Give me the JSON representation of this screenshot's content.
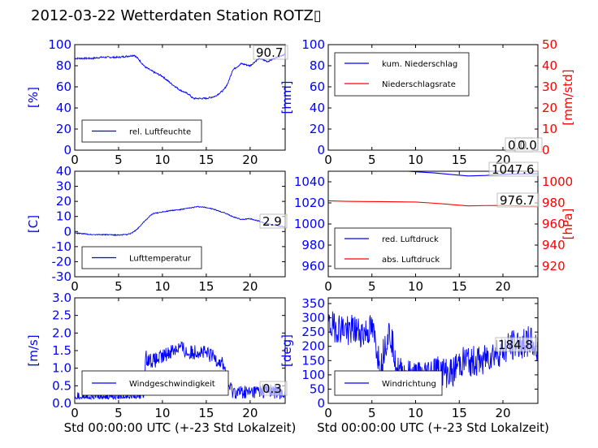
{
  "figure": {
    "title": "2012-03-22 Wetterdaten Station ROTZ▯"
  },
  "chart_data": [
    {
      "id": "humidity",
      "type": "line",
      "ylabel_left": "[%]",
      "ylim": [
        0,
        100
      ],
      "yticks": [
        0,
        20,
        40,
        60,
        80,
        100
      ],
      "xlim": [
        0,
        24
      ],
      "xticks": [
        0,
        5,
        10,
        15,
        20
      ],
      "legend": {
        "placement": "lower-left"
      },
      "annotation": "90.7",
      "series": [
        {
          "name": "rel. Luftfeuchte",
          "color": "#0000ff",
          "noise": 0.8,
          "x": [
            0,
            1,
            2,
            3,
            4,
            5,
            6,
            6.8,
            7.3,
            8,
            9,
            10,
            11,
            12,
            13,
            13.5,
            14,
            15,
            16,
            16.5,
            17,
            17.5,
            18,
            19,
            20,
            21,
            22,
            23,
            24
          ],
          "y": [
            87,
            87,
            87,
            88,
            88,
            88,
            89,
            90,
            86,
            79,
            74,
            70,
            63,
            57,
            53,
            49,
            49,
            49,
            51,
            54,
            57,
            64,
            76,
            82,
            80,
            87,
            84,
            88,
            91
          ]
        }
      ]
    },
    {
      "id": "precipitation",
      "type": "line",
      "ylabel_left": "[mm]",
      "ylabel_right": "[mm/std]",
      "ylim": [
        0,
        100
      ],
      "yticks": [
        0,
        20,
        40,
        60,
        80,
        100
      ],
      "ylim_right": [
        0,
        50
      ],
      "yticks_right": [
        0,
        10,
        20,
        30,
        40,
        50
      ],
      "xlim": [
        0,
        24
      ],
      "xticks": [
        0,
        5,
        10,
        15,
        20
      ],
      "legend": {
        "placement": "top-left"
      },
      "annotation": "0.0",
      "annotation2": "0.0",
      "series": [
        {
          "name": "kum. Niederschlag",
          "color": "#0000ff",
          "x": [
            0,
            24
          ],
          "y": [
            0,
            0
          ]
        },
        {
          "name": "Niederschlagsrate",
          "color": "#ff0000",
          "axis": "right",
          "x": [
            0,
            24
          ],
          "y": [
            0,
            0
          ]
        }
      ]
    },
    {
      "id": "temperature",
      "type": "line",
      "ylabel_left": "[C]",
      "ylim": [
        -30,
        40
      ],
      "yticks": [
        -30,
        -20,
        -10,
        0,
        10,
        20,
        30,
        40
      ],
      "xlim": [
        0,
        24
      ],
      "xticks": [
        0,
        5,
        10,
        15,
        20
      ],
      "legend": {
        "placement": "lower-left"
      },
      "annotation": "2.9",
      "series": [
        {
          "name": "Lufttemperatur",
          "color": "#0000ff",
          "noise": 0.35,
          "x": [
            0,
            1,
            2,
            3,
            4,
            5,
            6,
            6.5,
            7,
            7.5,
            8,
            8.5,
            9,
            10,
            11,
            12,
            13,
            14,
            15,
            16,
            17,
            18,
            19,
            20,
            21,
            22,
            23,
            24
          ],
          "y": [
            -1,
            -1.5,
            -2,
            -2,
            -2.2,
            -2.3,
            -2,
            -1,
            1,
            4,
            7,
            10,
            12,
            13,
            14,
            14.5,
            15.5,
            16.5,
            16,
            14.5,
            12.5,
            10,
            8,
            8.5,
            7,
            5,
            4,
            3
          ]
        }
      ]
    },
    {
      "id": "pressure",
      "type": "line",
      "ylabel_left": "",
      "ylabel_right": "[hPa]",
      "ylim": [
        950,
        1050
      ],
      "yticks": [
        960,
        980,
        1000,
        1020,
        1040
      ],
      "ylim_right": [
        910,
        1010
      ],
      "yticks_right": [
        920,
        940,
        960,
        980,
        1000
      ],
      "xlim": [
        0,
        24
      ],
      "xticks": [
        0,
        5,
        10,
        15,
        20
      ],
      "legend": {
        "placement": "lower-left"
      },
      "annotation": "1047.6",
      "annotation2": "976.7",
      "series": [
        {
          "name": "red. Luftdruck",
          "color": "#0000ff",
          "x": [
            0,
            4,
            8,
            10,
            12,
            14,
            16,
            18,
            20,
            22,
            24
          ],
          "y": [
            1052,
            1051.5,
            1050.8,
            1049.5,
            1048.5,
            1047,
            1045.5,
            1046,
            1047,
            1047.5,
            1047.6
          ]
        },
        {
          "name": "abs. Luftdruck",
          "color": "#ff0000",
          "axis": "right",
          "x": [
            0,
            2,
            4,
            6,
            8,
            10,
            12,
            14,
            16,
            18,
            20,
            22,
            24
          ],
          "y": [
            982,
            981.5,
            981.3,
            981.2,
            981.0,
            980.8,
            979.8,
            978.5,
            977.2,
            977.5,
            977.6,
            977.2,
            976.7
          ]
        }
      ]
    },
    {
      "id": "windspeed",
      "type": "line",
      "ylabel_left": "[m/s]",
      "ylim": [
        0,
        3.0
      ],
      "yticks": [
        0.0,
        0.5,
        1.0,
        1.5,
        2.0,
        2.5,
        3.0
      ],
      "xlim": [
        0,
        24
      ],
      "xticks": [
        0,
        5,
        10,
        15,
        20
      ],
      "legend": {
        "placement": "lower-left"
      },
      "annotation": "0.3",
      "series": [
        {
          "name": "Windgeschwindigkeit",
          "color": "#0000ff",
          "noise": 0.22,
          "x": [
            0,
            2,
            4,
            6,
            7.9,
            8.1,
            9,
            10,
            11,
            12,
            13,
            14,
            15,
            16,
            17,
            17.5,
            18,
            19,
            20,
            21,
            22,
            23,
            24
          ],
          "y": [
            0.2,
            0.2,
            0.2,
            0.22,
            0.25,
            1.3,
            1.2,
            1.3,
            1.5,
            1.6,
            1.4,
            1.5,
            1.4,
            1.3,
            1.1,
            0.5,
            0.35,
            0.3,
            0.3,
            0.35,
            0.35,
            0.3,
            0.3
          ]
        }
      ]
    },
    {
      "id": "winddirection",
      "type": "line",
      "ylabel_left": "[deg]",
      "ylim": [
        0,
        370
      ],
      "yticks": [
        0,
        50,
        100,
        150,
        200,
        250,
        300,
        350
      ],
      "xlim": [
        0,
        24
      ],
      "xticks": [
        0,
        5,
        10,
        15,
        20
      ],
      "xlabel": "Std 00:00:00 UTC (+-23 Std Lokalzeit)",
      "legend": {
        "placement": "lower-left"
      },
      "annotation": "184.8",
      "series": [
        {
          "name": "Windrichtung",
          "color": "#0000ff",
          "noise": 55,
          "x": [
            0,
            1,
            2,
            3,
            4,
            5,
            5.5,
            6,
            6.5,
            7,
            7.5,
            8,
            9,
            10,
            11,
            12,
            13,
            14,
            15,
            16,
            17,
            18,
            19,
            20,
            21,
            22,
            23,
            24
          ],
          "y": [
            270,
            265,
            260,
            255,
            245,
            260,
            200,
            120,
            210,
            250,
            200,
            110,
            100,
            95,
            100,
            120,
            110,
            105,
            140,
            150,
            145,
            160,
            175,
            185,
            200,
            210,
            220,
            185
          ]
        }
      ]
    }
  ],
  "shared": {
    "xlabel": "Std 00:00:00 UTC (+-23 Std Lokalzeit)"
  }
}
